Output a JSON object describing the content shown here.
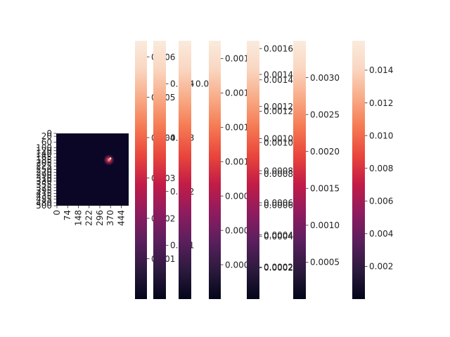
{
  "chart_data": {
    "type": "heatmap",
    "title": "",
    "xlabel": "",
    "ylabel": "",
    "heatmap": {
      "size": [
        500,
        500
      ],
      "xlim": [
        0,
        500
      ],
      "ylim": [
        0,
        500
      ],
      "x_ticks": [
        "0",
        "74",
        "148",
        "222",
        "296",
        "370",
        "444"
      ],
      "y_ticks": [
        "0",
        "20",
        "60",
        "100",
        "120",
        "140",
        "165",
        "185",
        "205",
        "225",
        "250",
        "270",
        "290",
        "310",
        "330",
        "355",
        "375",
        "395",
        "415",
        "435",
        "455",
        "480",
        "500"
      ],
      "hotspot": {
        "x": 296,
        "y": 222,
        "radius": 40,
        "peak": 0.006
      },
      "background": "#0b0625"
    },
    "colorbars": [
      {
        "vmin": 0.0,
        "vmax": 0.0064,
        "ticks": [
          "0.001",
          "0.002",
          "0.003",
          "0.004",
          "0.005",
          "0.006"
        ],
        "values": [
          0.001,
          0.002,
          0.003,
          0.004,
          0.005,
          0.006
        ]
      },
      {
        "vmin": 0.0,
        "vmax": 0.0048,
        "ticks": [
          "0.001",
          "0.002",
          "0.003",
          "0.004"
        ],
        "values": [
          0.001,
          0.002,
          0.003,
          0.004
        ]
      },
      {
        "vmin": 0.0,
        "vmax": 0.0036,
        "ticks": [
          "0.003"
        ],
        "values": [
          0.003
        ]
      },
      {
        "vmin": 0.0,
        "vmax": 0.00188,
        "ticks": [
          "0.00025",
          "0.00050",
          "0.00075",
          "0.00100",
          "0.00125",
          "0.00150",
          "0.00175"
        ],
        "values": [
          0.00025,
          0.0005,
          0.00075,
          0.001,
          0.00125,
          0.0015,
          0.00175
        ]
      },
      {
        "vmin": 0.0,
        "vmax": 0.00161,
        "ticks": [
          "0.0002",
          "0.0004",
          "0.0006",
          "0.0008",
          "0.0010",
          "0.0012",
          "0.0014"
        ],
        "values": [
          0.0002,
          0.0004,
          0.0006,
          0.0008,
          0.001,
          0.0012,
          0.0014
        ]
      },
      {
        "vmin": 0.0,
        "vmax": 0.00165,
        "ticks": [
          "0.0002",
          "0.0004",
          "0.0006",
          "0.0008",
          "0.0010",
          "0.0012",
          "0.0014",
          "0.0016"
        ],
        "values": [
          0.0002,
          0.0004,
          0.0006,
          0.0008,
          0.001,
          0.0012,
          0.0014,
          0.0016
        ]
      },
      {
        "vmin": 0.0,
        "vmax": 0.0035,
        "ticks": [
          "0.0005",
          "0.0010",
          "0.0015",
          "0.0020",
          "0.0025",
          "0.0030"
        ],
        "values": [
          0.0005,
          0.001,
          0.0015,
          0.002,
          0.0025,
          0.003
        ]
      },
      {
        "vmin": 0.0,
        "vmax": 0.0158,
        "ticks": [
          "0.002",
          "0.004",
          "0.006",
          "0.008",
          "0.010",
          "0.012",
          "0.014"
        ],
        "values": [
          0.002,
          0.004,
          0.006,
          0.008,
          0.01,
          0.012,
          0.014
        ]
      }
    ],
    "colormap": "rocket",
    "colormap_stops": [
      "#03051a",
      "#2b1a3d",
      "#5a1f5e",
      "#8e1c5f",
      "#c21c47",
      "#e9463c",
      "#f57a53",
      "#f8ab86",
      "#fad6c1",
      "#faebdd"
    ],
    "grid": false
  }
}
